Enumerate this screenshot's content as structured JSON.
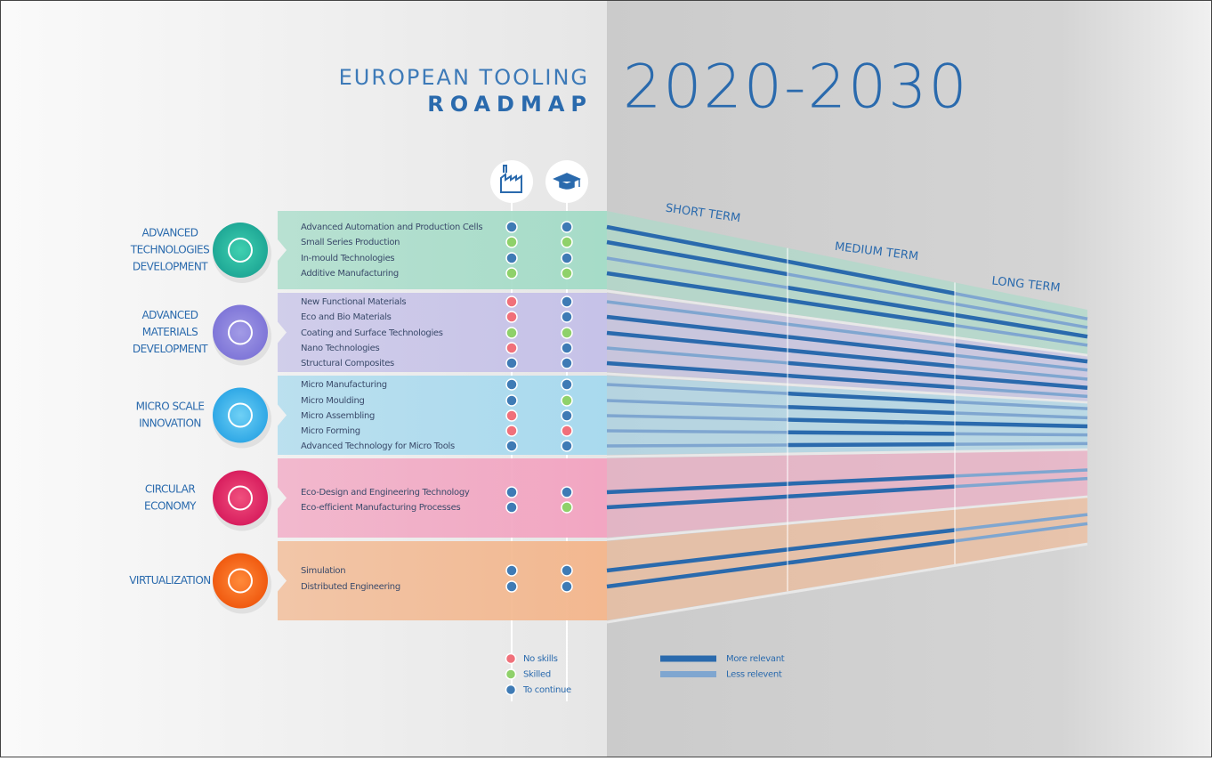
{
  "header": {
    "line1": "EUROPEAN TOOLING",
    "line2": "ROADMAP",
    "years": "2020-2030"
  },
  "terms": [
    "SHORT TERM",
    "MEDIUM TERM",
    "LONG TERM"
  ],
  "groups": [
    {
      "label": [
        "ADVANCED",
        "TECHNOLOGIES",
        "DEVELOPMENT"
      ],
      "color": "#a6dcc8",
      "icon": [
        "#3fd0b0",
        "#1fa896"
      ],
      "items": [
        {
          "name": "Advanced Automation and Production Cells",
          "industry": "#3f7bb5",
          "education": "#3f7bb5",
          "relevance": [
            "#2a6aad",
            "#2a6aad",
            "#7fa6d0"
          ]
        },
        {
          "name": "Small Series Production",
          "industry": "#8fd16a",
          "education": "#8fd16a",
          "relevance": [
            "#2a6aad",
            "#7fa6d0",
            "#7fa6d0"
          ]
        },
        {
          "name": "In-mould Technologies",
          "industry": "#3f7bb5",
          "education": "#3f7bb5",
          "relevance": [
            "#7fa6d0",
            "#2a6aad",
            "#2a6aad"
          ]
        },
        {
          "name": "Additive Manufacturing",
          "industry": "#8fd16a",
          "education": "#8fd16a",
          "relevance": [
            "#2a6aad",
            "#2a6aad",
            "#7fa6d0"
          ]
        }
      ]
    },
    {
      "label": [
        "ADVANCED",
        "MATERIALS",
        "DEVELOPMENT"
      ],
      "color": "#c6c2e8",
      "icon": [
        "#a29be6",
        "#7f76d8"
      ],
      "items": [
        {
          "name": "New Functional Materials",
          "industry": "#f0707a",
          "education": "#3f7bb5",
          "relevance": [
            "#7fa6d0",
            "#7fa6d0",
            "#2a6aad"
          ]
        },
        {
          "name": "Eco and Bio Materials",
          "industry": "#f0707a",
          "education": "#3f7bb5",
          "relevance": [
            "#2a6aad",
            "#2a6aad",
            "#7fa6d0"
          ]
        },
        {
          "name": "Coating and Surface Technologies",
          "industry": "#8fd16a",
          "education": "#8fd16a",
          "relevance": [
            "#2a6aad",
            "#2a6aad",
            "#7fa6d0"
          ]
        },
        {
          "name": "Nano Technologies",
          "industry": "#f0707a",
          "education": "#3f7bb5",
          "relevance": [
            "#7fa6d0",
            "#2a6aad",
            "#2a6aad"
          ]
        },
        {
          "name": "Structural Composites",
          "industry": "#3f7bb5",
          "education": "#3f7bb5",
          "relevance": [
            "#2a6aad",
            "#2a6aad",
            "#7fa6d0"
          ]
        }
      ]
    },
    {
      "label": [
        "MICRO SCALE",
        "INNOVATION"
      ],
      "color": "#a9daee",
      "icon": [
        "#6fd0f5",
        "#2fa8e6"
      ],
      "items": [
        {
          "name": "Micro Manufacturing",
          "industry": "#3f7bb5",
          "education": "#3f7bb5",
          "relevance": [
            "#7fa6d0",
            "#2a6aad",
            "#7fa6d0"
          ]
        },
        {
          "name": "Micro Moulding",
          "industry": "#3f7bb5",
          "education": "#8fd16a",
          "relevance": [
            "#7fa6d0",
            "#2a6aad",
            "#7fa6d0"
          ]
        },
        {
          "name": "Micro Assembling",
          "industry": "#f0707a",
          "education": "#3f7bb5",
          "relevance": [
            "#7fa6d0",
            "#2a6aad",
            "#2a6aad"
          ]
        },
        {
          "name": "Micro Forming",
          "industry": "#f0707a",
          "education": "#f0707a",
          "relevance": [
            "#7fa6d0",
            "#2a6aad",
            "#7fa6d0"
          ]
        },
        {
          "name": "Advanced Technology for Micro Tools",
          "industry": "#3f7bb5",
          "education": "#3f7bb5",
          "relevance": [
            "#7fa6d0",
            "#2a6aad",
            "#7fa6d0"
          ]
        }
      ]
    },
    {
      "label": [
        "CIRCULAR",
        "ECONOMY"
      ],
      "color": "#f2a6c2",
      "icon": [
        "#f0507e",
        "#d81e5e"
      ],
      "items": [
        {
          "name": "Eco-Design and Engineering Technology",
          "industry": "#3f7bb5",
          "education": "#3f7bb5",
          "relevance": [
            "#2a6aad",
            "#2a6aad",
            "#7fa6d0"
          ]
        },
        {
          "name": "Eco-efficient Manufacturing Processes",
          "industry": "#3f7bb5",
          "education": "#8fd16a",
          "relevance": [
            "#2a6aad",
            "#2a6aad",
            "#7fa6d0"
          ]
        }
      ]
    },
    {
      "label": [
        "VIRTUALIZATION"
      ],
      "color": "#f3b890",
      "icon": [
        "#ff8a3a",
        "#f05a10"
      ],
      "items": [
        {
          "name": "Simulation",
          "industry": "#3f7bb5",
          "education": "#3f7bb5",
          "relevance": [
            "#2a6aad",
            "#2a6aad",
            "#7fa6d0"
          ]
        },
        {
          "name": "Distributed Engineering",
          "industry": "#3f7bb5",
          "education": "#3f7bb5",
          "relevance": [
            "#2a6aad",
            "#2a6aad",
            "#7fa6d0"
          ]
        }
      ]
    }
  ],
  "legend_skills": [
    {
      "label": "No skills",
      "color": "#f0707a"
    },
    {
      "label": "Skilled",
      "color": "#8fd16a"
    },
    {
      "label": "To continue",
      "color": "#3f7bb5"
    }
  ],
  "legend_relevance": [
    {
      "label": "More relevant",
      "color": "#2a6aad"
    },
    {
      "label": "Less relevent",
      "color": "#7fa6d0"
    }
  ]
}
